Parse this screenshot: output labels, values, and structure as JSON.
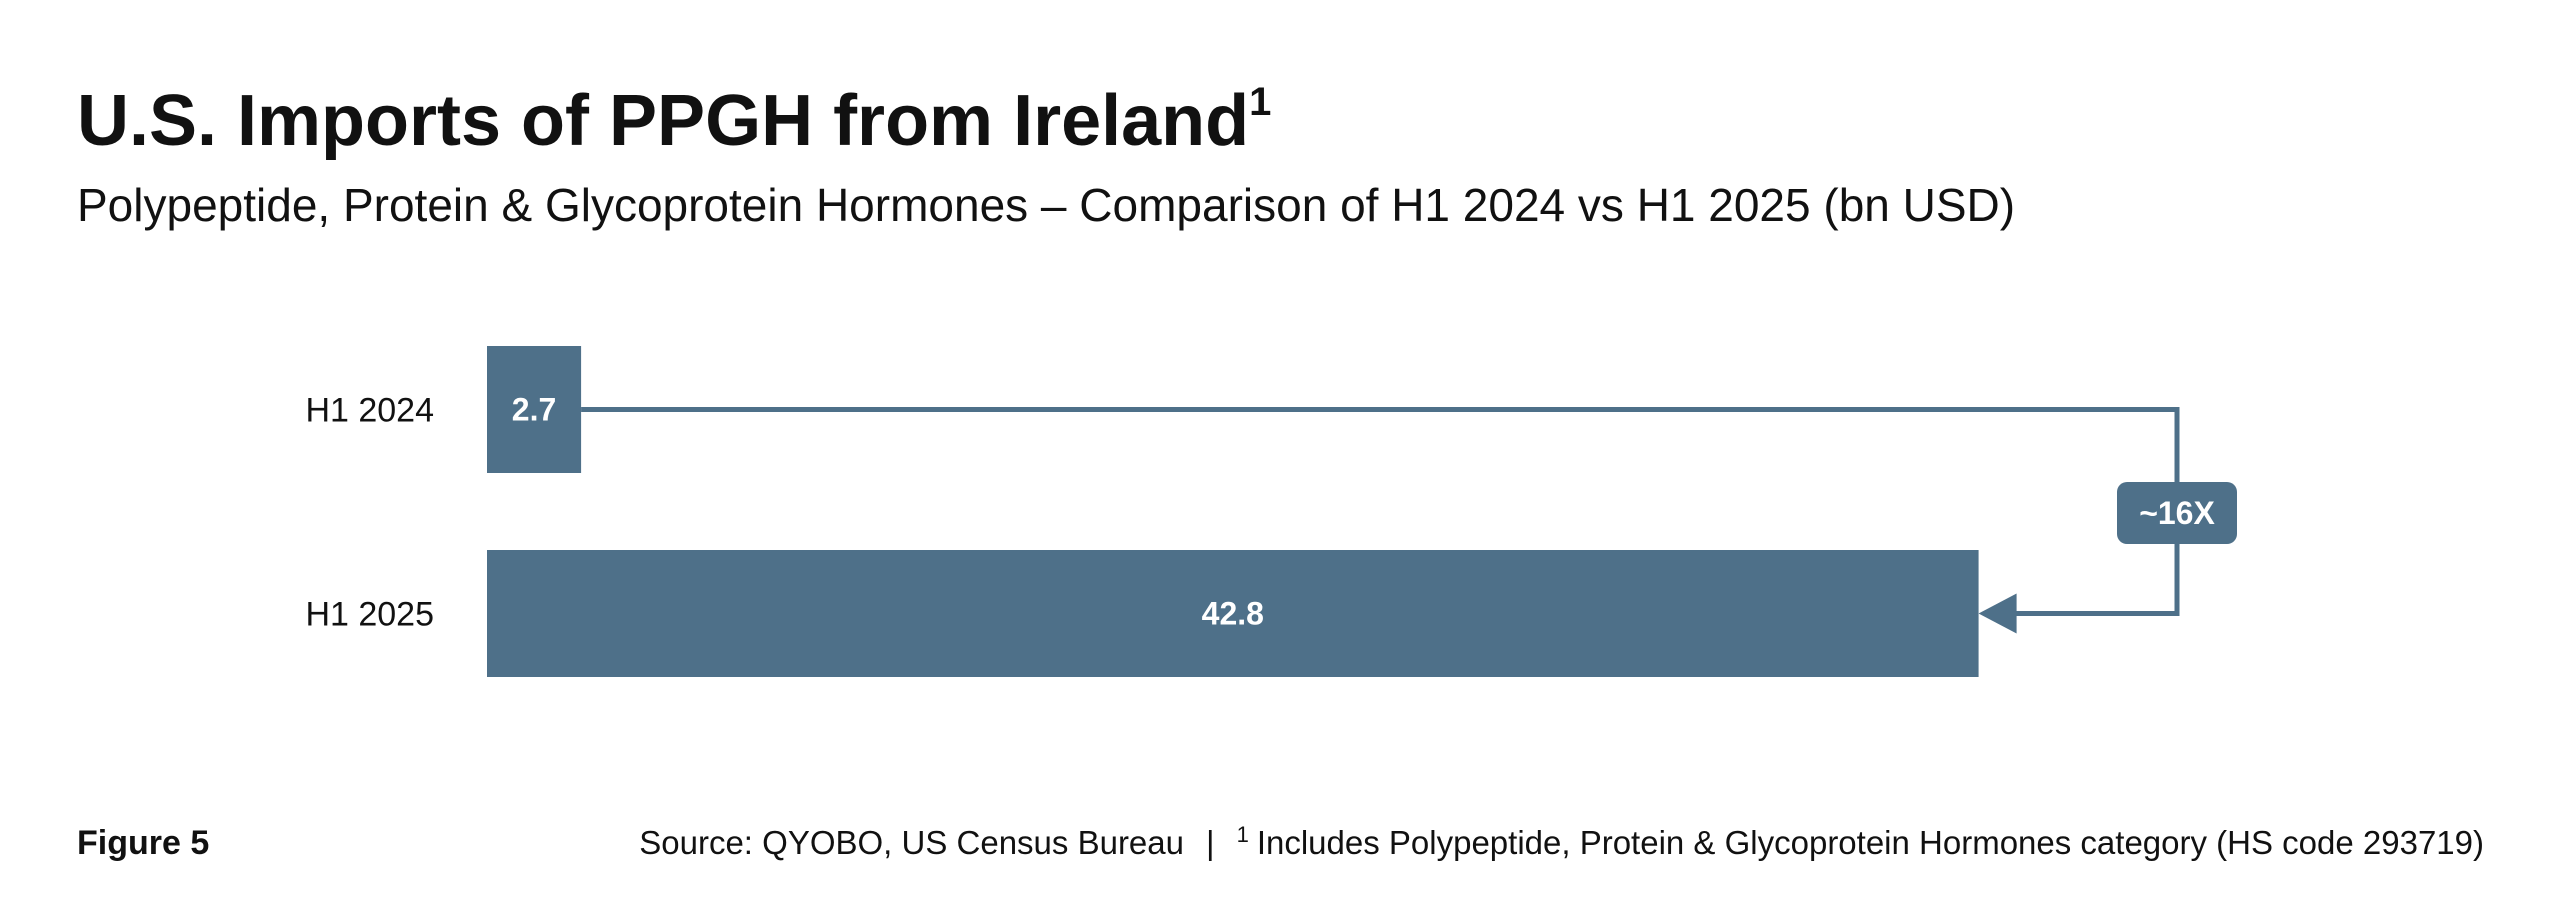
{
  "chart_data": {
    "type": "bar",
    "orientation": "horizontal",
    "title": "U.S. Imports of PPGH from Ireland",
    "title_superscript": "1",
    "subtitle": "Polypeptide, Protein & Glycoprotein Hormones – Comparison of H1 2024 vs H1 2025 (bn USD)",
    "categories": [
      "H1 2024",
      "H1 2025"
    ],
    "values": [
      2.7,
      42.8
    ],
    "color": "#4e7089",
    "annotation": "~16X",
    "figure_label": "Figure 5",
    "source": "Source: QYOBO, US Census Bureau",
    "separator": "|",
    "footnote_marker": "1",
    "footnote": "Includes Polypeptide, Protein & Glycoprotein Hormones category (HS code 293719)"
  }
}
